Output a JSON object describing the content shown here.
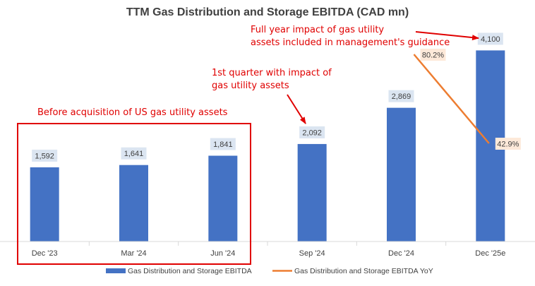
{
  "chart_data": {
    "type": "bar",
    "title": "TTM Gas Distribution and Storage EBITDA (CAD mn)",
    "categories": [
      "Dec '23",
      "Mar '24",
      "Jun '24",
      "Sep '24",
      "Dec '24",
      "Dec '25e"
    ],
    "series": [
      {
        "name": "Gas Distribution and Storage EBITDA",
        "type": "bar",
        "color": "#4472c4",
        "values": [
          1592,
          1641,
          1841,
          2092,
          2869,
          4100
        ],
        "labels": [
          "1,592",
          "1,641",
          "1,841",
          "2,092",
          "2,869",
          "4,100"
        ]
      },
      {
        "name": "Gas Distribution and Storage EBITDA YoY",
        "type": "line",
        "color": "#ed7d31",
        "points": [
          {
            "category": "Dec '24",
            "value": 80.2,
            "label": "80.2%"
          },
          {
            "category": "Dec '25e",
            "value": 42.9,
            "label": "42.9%"
          }
        ]
      }
    ],
    "ylim": [
      0,
      4500
    ],
    "grid": false,
    "legend": "bottom",
    "annotations": [
      {
        "id": "before",
        "text": "Before acquisition of US gas utility assets",
        "color": "#e00000",
        "box_categories": [
          "Dec '23",
          "Mar '24",
          "Jun '24"
        ]
      },
      {
        "id": "q1",
        "lines": [
          "1st quarter with impact of",
          "gas utility assets"
        ],
        "color": "#e00000",
        "arrow_to": "Sep '24"
      },
      {
        "id": "full",
        "lines": [
          "Full year impact of gas utility",
          "assets included in management's guidance"
        ],
        "color": "#e00000",
        "arrow_to": "Dec '25e"
      }
    ]
  }
}
